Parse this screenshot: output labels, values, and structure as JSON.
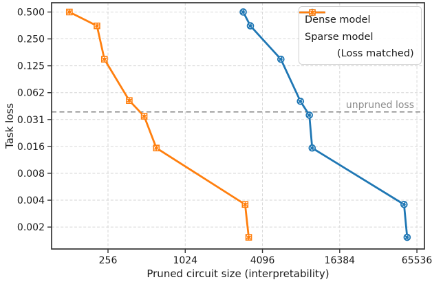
{
  "figure": {
    "xlabel": "Pruned circuit size (interpretability)",
    "ylabel": "Task loss",
    "annotation": "unpruned loss"
  },
  "legend": {
    "position": "upper right",
    "items": [
      {
        "id": "dense",
        "label": "Dense model",
        "sublabel": "",
        "color": "#1f77b4",
        "marker": "circle"
      },
      {
        "id": "sparse",
        "label": "Sparse model",
        "sublabel": "(Loss matched)",
        "color": "#ff7f0e",
        "marker": "square"
      }
    ]
  },
  "colors": {
    "dense": "#1f77b4",
    "sparse": "#ff7f0e",
    "reference_line": "#808080",
    "annotation_text": "#8c8c8c",
    "grid": "#d6d6d6",
    "frame": "#333333"
  },
  "chart_data": {
    "type": "line",
    "title": "",
    "xlabel": "Pruned circuit size (interpretability)",
    "ylabel": "Task loss",
    "x_scale": "log",
    "y_scale": "log",
    "xlim": [
      93,
      75000
    ],
    "ylim": [
      0.00111,
      0.635
    ],
    "grid": true,
    "legend_position": "upper right",
    "x_ticks": {
      "values": [
        256,
        1024,
        4096,
        16384,
        65536
      ],
      "labels": [
        "256",
        "1024",
        "4096",
        "16384",
        "65536"
      ]
    },
    "y_ticks": {
      "values": [
        0.5,
        0.25,
        0.125,
        0.0625,
        0.03125,
        0.015625,
        0.0078125,
        0.00390625,
        0.001953125
      ],
      "labels": [
        "0.500",
        "0.250",
        "0.125",
        "0.062",
        "0.031",
        "0.016",
        "0.008",
        "0.004",
        "0.002"
      ]
    },
    "reference_line": {
      "label": "unpruned loss",
      "y": 0.038
    },
    "series": [
      {
        "id": "dense",
        "name": "Dense model",
        "color": "#1f77b4",
        "marker": "circle",
        "points": [
          [
            2900,
            0.5
          ],
          [
            3300,
            0.35
          ],
          [
            5700,
            0.148
          ],
          [
            8100,
            0.05
          ],
          [
            9500,
            0.035
          ],
          [
            10000,
            0.015
          ],
          [
            52000,
            0.0035
          ],
          [
            55000,
            0.0015
          ]
        ]
      },
      {
        "id": "sparse",
        "name": "Sparse model (Loss matched)",
        "color": "#ff7f0e",
        "marker": "square",
        "points": [
          [
            128,
            0.5
          ],
          [
            210,
            0.35
          ],
          [
            240,
            0.148
          ],
          [
            375,
            0.051
          ],
          [
            490,
            0.034
          ],
          [
            610,
            0.015
          ],
          [
            3000,
            0.0035
          ],
          [
            3200,
            0.0015
          ]
        ]
      }
    ]
  }
}
